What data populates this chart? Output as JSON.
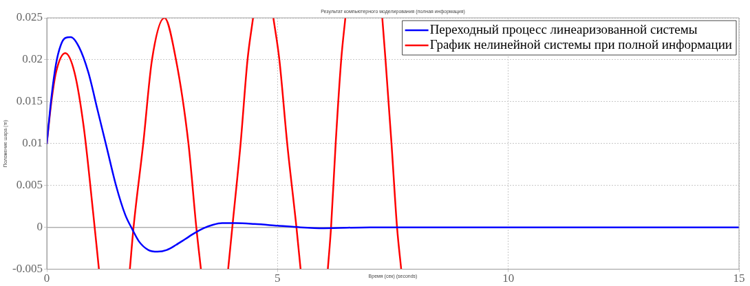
{
  "chart_data": {
    "type": "line",
    "title": "Результат компьютерного моделирования (полная информация)",
    "xlabel": "Время (сек) (seconds)",
    "ylabel": "Положение шара (m)",
    "xlim": [
      0,
      15
    ],
    "xticks": [
      0,
      5,
      10,
      15
    ],
    "ylim": [
      -0.005,
      0.025
    ],
    "yticks": [
      -0.005,
      0,
      0.005,
      0.01,
      0.015,
      0.02,
      0.025
    ],
    "grid": true,
    "legend": "top right",
    "marker": "none",
    "line_style": "solid",
    "ref_lines": [
      {
        "axis": "y",
        "value": 0,
        "color": "#b0b0b0"
      }
    ],
    "series": [
      {
        "name": "Переходный процесс линеаризованной системы",
        "color": "#0000ff",
        "x": [
          0,
          0.1,
          0.2,
          0.3,
          0.4,
          0.52,
          0.7,
          0.9,
          1.1,
          1.3,
          1.5,
          1.7,
          1.85,
          2.0,
          2.2,
          2.4,
          2.6,
          2.8,
          3.0,
          3.2,
          3.4,
          3.6,
          3.8,
          4.1,
          4.5,
          5.0,
          5.5,
          6.0,
          7.0,
          15
        ],
        "values": [
          0.01,
          0.0155,
          0.0195,
          0.0217,
          0.0226,
          0.0227,
          0.0215,
          0.0185,
          0.014,
          0.0095,
          0.005,
          0.0015,
          -0.0002,
          -0.0017,
          -0.0027,
          -0.0029,
          -0.0027,
          -0.0021,
          -0.0014,
          -0.0007,
          -0.0001,
          0.0003,
          0.0005,
          0.0005,
          0.0004,
          0.0002,
          0,
          -0.0001,
          0,
          0
        ]
      },
      {
        "name": "График нелинейной системы при полной информации",
        "color": "#ff0000",
        "x": [
          0,
          0.1,
          0.2,
          0.4,
          0.6,
          0.8,
          1.0,
          1.13,
          1.5,
          1.8,
          1.88,
          2.09,
          2.28,
          2.55,
          2.8,
          3.07,
          3.24,
          3.34,
          3.6,
          3.93,
          4.02,
          4.2,
          4.35,
          4.47,
          4.7,
          4.91,
          5.04,
          5.21,
          5.41,
          5.5,
          5.8,
          6.09,
          6.16,
          6.26,
          6.38,
          6.47,
          6.9,
          7.27,
          7.34,
          7.47,
          7.59,
          7.68
        ],
        "values": [
          0.01,
          0.015,
          0.0185,
          0.0208,
          0.0185,
          0.012,
          0.002,
          -0.005,
          null,
          -0.005,
          0,
          0.01,
          0.02,
          0.025,
          0.02,
          0.01,
          0,
          -0.005,
          null,
          -0.005,
          0,
          0.01,
          0.02,
          0.025,
          null,
          0.025,
          0.02,
          0.01,
          0,
          -0.005,
          null,
          -0.005,
          0,
          0.01,
          0.02,
          0.025,
          null,
          0.025,
          0.02,
          0.01,
          0,
          -0.005
        ]
      }
    ]
  }
}
